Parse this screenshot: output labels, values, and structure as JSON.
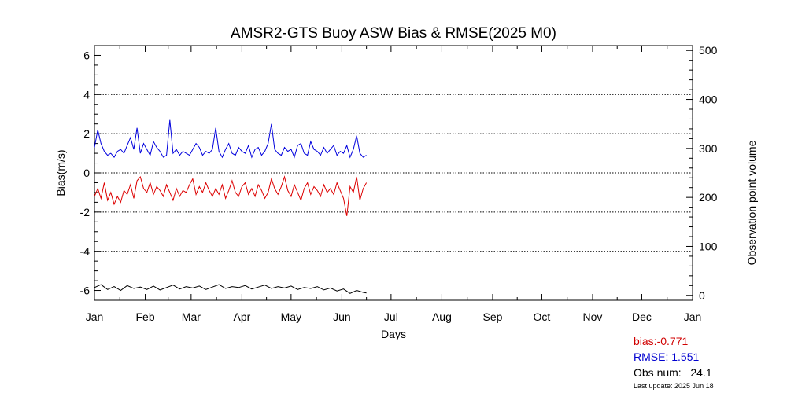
{
  "chart_data": {
    "type": "line",
    "title": "AMSR2-GTS Buoy ASW Bias & RMSE(2025 M0)",
    "xlabel": "Days",
    "ylabel": "Bias(m/s)",
    "y2label": "Observation point volume",
    "xlim": [
      1,
      366
    ],
    "ylim": [
      -6.5,
      6.5
    ],
    "y2lim": [
      -10,
      510
    ],
    "grid": true,
    "x_ticks": [
      {
        "label": "Jan",
        "day": 1
      },
      {
        "label": "Feb",
        "day": 32
      },
      {
        "label": "Mar",
        "day": 60
      },
      {
        "label": "Apr",
        "day": 91
      },
      {
        "label": "May",
        "day": 121
      },
      {
        "label": "Jun",
        "day": 152
      },
      {
        "label": "Jul",
        "day": 182
      },
      {
        "label": "Aug",
        "day": 213
      },
      {
        "label": "Sep",
        "day": 244
      },
      {
        "label": "Oct",
        "day": 274
      },
      {
        "label": "Nov",
        "day": 305
      },
      {
        "label": "Dec",
        "day": 335
      },
      {
        "label": "Jan",
        "day": 366
      }
    ],
    "y_ticks": [
      6,
      4,
      2,
      0,
      -2,
      -4,
      -6
    ],
    "y2_ticks": [
      500,
      400,
      300,
      200,
      100,
      0
    ],
    "gridlines_y": [
      4,
      2,
      0,
      -2,
      -4
    ],
    "series": [
      {
        "axis": "left",
        "color": "#0000dd",
        "x": [
          1,
          3,
          5,
          7,
          9,
          11,
          13,
          15,
          17,
          19,
          21,
          23,
          25,
          27,
          29,
          31,
          33,
          35,
          37,
          39,
          41,
          43,
          45,
          47,
          49,
          51,
          53,
          55,
          57,
          59,
          61,
          63,
          65,
          67,
          69,
          71,
          73,
          75,
          77,
          79,
          81,
          83,
          85,
          87,
          89,
          91,
          93,
          95,
          97,
          99,
          101,
          103,
          105,
          107,
          109,
          111,
          113,
          115,
          117,
          119,
          121,
          123,
          125,
          127,
          129,
          131,
          133,
          135,
          137,
          139,
          141,
          143,
          145,
          147,
          149,
          151,
          153,
          155,
          157,
          159,
          161,
          163,
          165,
          167
        ],
        "y": [
          1.3,
          2.2,
          1.5,
          1.1,
          0.9,
          1.0,
          0.8,
          1.1,
          1.2,
          1.0,
          1.4,
          1.8,
          1.2,
          2.3,
          1.0,
          1.5,
          1.2,
          0.9,
          1.6,
          1.3,
          1.1,
          0.8,
          0.9,
          2.7,
          1.0,
          1.2,
          0.9,
          1.1,
          1.0,
          0.9,
          1.2,
          1.5,
          1.3,
          0.9,
          1.1,
          1.0,
          1.2,
          2.3,
          1.1,
          0.8,
          1.2,
          1.5,
          1.0,
          0.9,
          1.3,
          1.1,
          1.0,
          1.4,
          0.8,
          1.2,
          1.3,
          0.9,
          1.1,
          1.5,
          2.5,
          1.2,
          1.0,
          0.9,
          1.3,
          1.1,
          1.2,
          0.8,
          1.4,
          1.5,
          1.0,
          0.9,
          1.6,
          1.2,
          1.1,
          0.9,
          1.3,
          1.0,
          1.2,
          1.4,
          0.9,
          1.1,
          1.0,
          1.4,
          0.8,
          1.2,
          1.9,
          1.0,
          0.8,
          0.9
        ]
      },
      {
        "axis": "left",
        "color": "#dd0000",
        "x": [
          1,
          3,
          5,
          7,
          9,
          11,
          13,
          15,
          17,
          19,
          21,
          23,
          25,
          27,
          29,
          31,
          33,
          35,
          37,
          39,
          41,
          43,
          45,
          47,
          49,
          51,
          53,
          55,
          57,
          59,
          61,
          63,
          65,
          67,
          69,
          71,
          73,
          75,
          77,
          79,
          81,
          83,
          85,
          87,
          89,
          91,
          93,
          95,
          97,
          99,
          101,
          103,
          105,
          107,
          109,
          111,
          113,
          115,
          117,
          119,
          121,
          123,
          125,
          127,
          129,
          131,
          133,
          135,
          137,
          139,
          141,
          143,
          145,
          147,
          149,
          151,
          153,
          155,
          157,
          159,
          161,
          163,
          165,
          167
        ],
        "y": [
          -1.2,
          -0.8,
          -1.3,
          -0.5,
          -1.4,
          -1.0,
          -1.6,
          -1.2,
          -1.5,
          -0.9,
          -1.1,
          -0.6,
          -1.3,
          -0.4,
          -0.2,
          -0.8,
          -1.0,
          -0.5,
          -1.1,
          -0.7,
          -0.9,
          -1.2,
          -0.6,
          -1.0,
          -1.4,
          -0.8,
          -1.2,
          -0.9,
          -1.0,
          -0.6,
          -0.3,
          -1.1,
          -0.7,
          -1.0,
          -0.5,
          -0.9,
          -1.2,
          -0.8,
          -1.1,
          -0.6,
          -1.3,
          -0.9,
          -0.4,
          -1.0,
          -1.2,
          -0.7,
          -0.5,
          -1.1,
          -0.8,
          -1.2,
          -0.6,
          -0.9,
          -1.3,
          -1.0,
          -0.3,
          -0.8,
          -1.1,
          -0.7,
          -0.2,
          -0.9,
          -1.2,
          -0.6,
          -1.0,
          -1.4,
          -0.8,
          -0.5,
          -1.1,
          -0.7,
          -0.9,
          -1.2,
          -0.6,
          -1.0,
          -0.8,
          -1.1,
          -0.5,
          -0.9,
          -1.3,
          -2.2,
          -0.7,
          -1.0,
          -0.2,
          -1.4,
          -0.8,
          -0.5
        ]
      },
      {
        "axis": "right",
        "color": "#000000",
        "x": [
          1,
          5,
          9,
          13,
          17,
          21,
          25,
          29,
          33,
          37,
          41,
          45,
          49,
          53,
          57,
          61,
          65,
          69,
          73,
          77,
          81,
          85,
          89,
          93,
          97,
          101,
          105,
          109,
          113,
          117,
          121,
          125,
          129,
          133,
          137,
          141,
          145,
          149,
          153,
          157,
          161,
          165,
          167
        ],
        "y": [
          16,
          22,
          12,
          18,
          10,
          20,
          14,
          17,
          12,
          19,
          11,
          16,
          21,
          13,
          18,
          15,
          19,
          12,
          17,
          22,
          14,
          18,
          16,
          20,
          13,
          17,
          21,
          14,
          18,
          15,
          19,
          12,
          16,
          14,
          18,
          11,
          15,
          9,
          13,
          4,
          10,
          6,
          5
        ]
      }
    ]
  },
  "stats": {
    "bias": "bias:-0.771",
    "rmse": "RMSE: 1.551",
    "obs": "Obs num:   24.1",
    "last_update": "Last update: 2025 Jun 18"
  }
}
